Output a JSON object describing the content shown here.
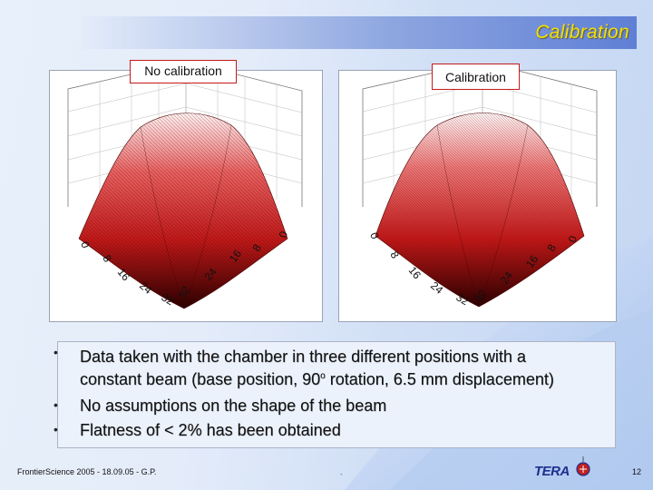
{
  "title": "Calibration",
  "plots": {
    "left": {
      "label": "No calibration",
      "axis_labels": [
        "0",
        "8",
        "16",
        "24",
        "32",
        "32",
        "24",
        "16",
        "8",
        "0"
      ]
    },
    "right": {
      "label": "Calibration",
      "axis_labels": [
        "0",
        "8",
        "16",
        "24",
        "32",
        "32",
        "24",
        "16",
        "8",
        "0"
      ]
    }
  },
  "bullets": [
    {
      "line1": "Data taken with the chamber in three different positions with a",
      "line2_pre": "constant beam (base position, 90",
      "sup": "o",
      "line2_post": " rotation, 6.5 mm displacement)"
    },
    {
      "line1": "No assumptions on the shape of the beam"
    },
    {
      "line1": "Flatness of < 2% has been obtained"
    }
  ],
  "footer": {
    "left": "FrontierScience 2005 - 18.09.05 - G.P.",
    "center": "-",
    "page": "12",
    "logo": "TERA"
  },
  "colors": {
    "title": "#f3e000",
    "label_border": "#c41a1a",
    "surface": "#c01818"
  }
}
